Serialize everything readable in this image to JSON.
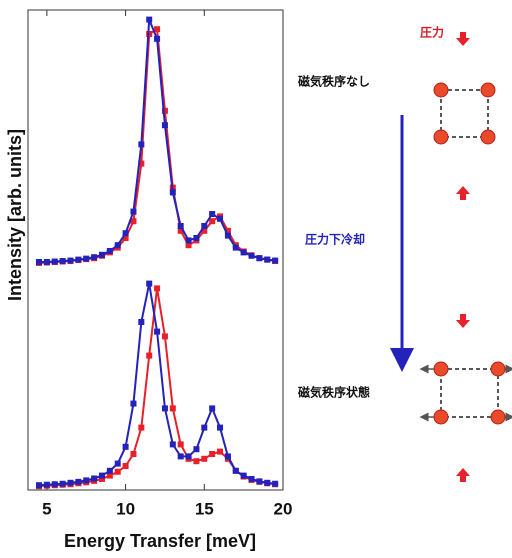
{
  "chart_data": {
    "type": "line",
    "xlabel": "Energy Transfer  [meV]",
    "ylabel": "Intensity [arb. units]",
    "xlim": [
      3.8,
      20
    ],
    "xticks": [
      5,
      10,
      15,
      20
    ],
    "ylim": [
      0,
      100
    ],
    "x": [
      4.5,
      5,
      5.5,
      6,
      6.5,
      7,
      7.5,
      8,
      8.5,
      9,
      9.5,
      10,
      10.5,
      11,
      11.5,
      12,
      12.5,
      13,
      13.5,
      14,
      14.5,
      15,
      15.5,
      16,
      16.5,
      17,
      17.5,
      18,
      18.5,
      19,
      19.5
    ],
    "series": [
      {
        "color": "#e8202a",
        "values": [
          47.3,
          47.4,
          47.5,
          47.6,
          47.7,
          47.9,
          48.1,
          48.3,
          48.8,
          49.5,
          50.5,
          52.5,
          56,
          68,
          95,
          96,
          79,
          63,
          54,
          51,
          52,
          54,
          56,
          57,
          54,
          51,
          49.7,
          48.9,
          48.3,
          48,
          47.7
        ]
      },
      {
        "color": "#2323bb",
        "values": [
          47.5,
          47.5,
          47.6,
          47.7,
          47.8,
          48,
          48.2,
          48.5,
          49,
          49.8,
          51,
          53.5,
          58,
          72,
          98,
          94,
          76,
          62,
          55,
          52,
          52.5,
          55,
          57.5,
          56.5,
          53,
          50.5,
          49.5,
          48.8,
          48.3,
          48,
          47.8
        ]
      },
      {
        "color": "#e8202a",
        "values": [
          0.8,
          0.9,
          1,
          1.1,
          1.2,
          1.4,
          1.6,
          1.9,
          2.3,
          3,
          3.8,
          5,
          7.5,
          13,
          28,
          42,
          32,
          17,
          9.5,
          6.5,
          6,
          6.5,
          7.5,
          8,
          6.5,
          4,
          2.8,
          2.1,
          1.7,
          1.4,
          1.2
        ]
      },
      {
        "color": "#2323bb",
        "values": [
          1,
          1.1,
          1.2,
          1.3,
          1.5,
          1.7,
          2,
          2.4,
          3,
          4,
          5.5,
          9,
          18,
          35,
          43,
          33,
          17,
          9.5,
          7,
          7,
          8.5,
          13,
          17,
          13,
          7,
          4,
          3,
          2.3,
          1.8,
          1.5,
          1.3
        ]
      }
    ]
  },
  "diagram": {
    "pressure": "圧力",
    "state_top": "磁気秩序なし",
    "process": "圧力下冷却",
    "state_bottom": "磁気秩序状態"
  }
}
